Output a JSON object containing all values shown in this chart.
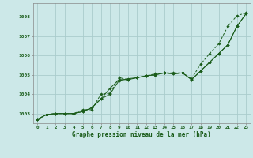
{
  "title": "Graphe pression niveau de la mer (hPa)",
  "background_color": "#cce8e8",
  "grid_color": "#aacccc",
  "line_color": "#1a5c1a",
  "xlim": [
    -0.5,
    23.5
  ],
  "ylim": [
    1002.5,
    1008.7
  ],
  "yticks": [
    1003,
    1004,
    1005,
    1006,
    1007,
    1008
  ],
  "xticks": [
    0,
    1,
    2,
    3,
    4,
    5,
    6,
    7,
    8,
    9,
    10,
    11,
    12,
    13,
    14,
    15,
    16,
    17,
    18,
    19,
    20,
    21,
    22,
    23
  ],
  "series1": [
    1002.7,
    1002.95,
    1003.0,
    1003.0,
    1003.0,
    1003.2,
    1003.2,
    1004.0,
    1004.05,
    1004.85,
    1004.75,
    1004.85,
    1004.95,
    1005.05,
    1005.1,
    1005.1,
    1005.1,
    1004.8,
    1005.55,
    1006.1,
    1006.6,
    1007.5,
    1008.05,
    1008.2
  ],
  "series2": [
    1002.7,
    1002.95,
    1003.0,
    1003.0,
    1003.0,
    1003.1,
    1003.3,
    1003.75,
    1004.3,
    1004.75,
    1004.75,
    1004.85,
    1004.95,
    1005.0,
    1005.1,
    1005.05,
    1005.1,
    1004.75,
    1005.2,
    1005.65,
    1006.1,
    1006.55,
    1007.5,
    1008.15
  ],
  "series3": [
    1002.7,
    1002.95,
    1003.0,
    1003.0,
    1003.0,
    1003.1,
    1003.3,
    1003.75,
    1004.0,
    1004.7,
    1004.8,
    1004.85,
    1004.95,
    1005.0,
    1005.1,
    1005.05,
    1005.1,
    1004.75,
    1005.2,
    1005.65,
    1006.1,
    1006.55,
    1007.5,
    1008.15
  ]
}
